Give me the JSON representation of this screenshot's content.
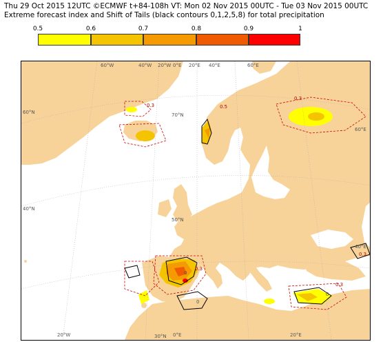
{
  "title": {
    "line1": "Thu 29 Oct 2015 12UTC ©ECMWF t+84-108h  VT: Mon 02 Nov 2015 00UTC - Tue 03 Nov 2015 00UTC",
    "line2": "Extreme forecast index and Shift of Tails (black contours 0,1,2,5,8) for total precipitation"
  },
  "legend": {
    "ticks": [
      "0.5",
      "0.6",
      "0.7",
      "0.8",
      "0.9",
      "1"
    ],
    "colors": [
      "#ffff00",
      "#f5c400",
      "#f59a00",
      "#f05a00",
      "#ff0000"
    ]
  },
  "map": {
    "land_color": "#f7d39a",
    "sea_color": "#ffffff",
    "grid_labels": {
      "top": [
        "60°W",
        "40°W",
        "20°W",
        "0°E",
        "20°E",
        "40°E",
        "60°E"
      ],
      "bottom": [
        "20°W",
        "0°E",
        "20°E"
      ],
      "left": [
        "60°N",
        "40°N"
      ],
      "right": [
        "60°E",
        "40°E"
      ],
      "inner": [
        "70°N",
        "50°N",
        "30°N"
      ]
    },
    "contour_labels": [
      "0.3",
      "0.3",
      "0.3",
      "0.5",
      "0.3",
      "0",
      "0",
      "0",
      "0.3"
    ]
  }
}
